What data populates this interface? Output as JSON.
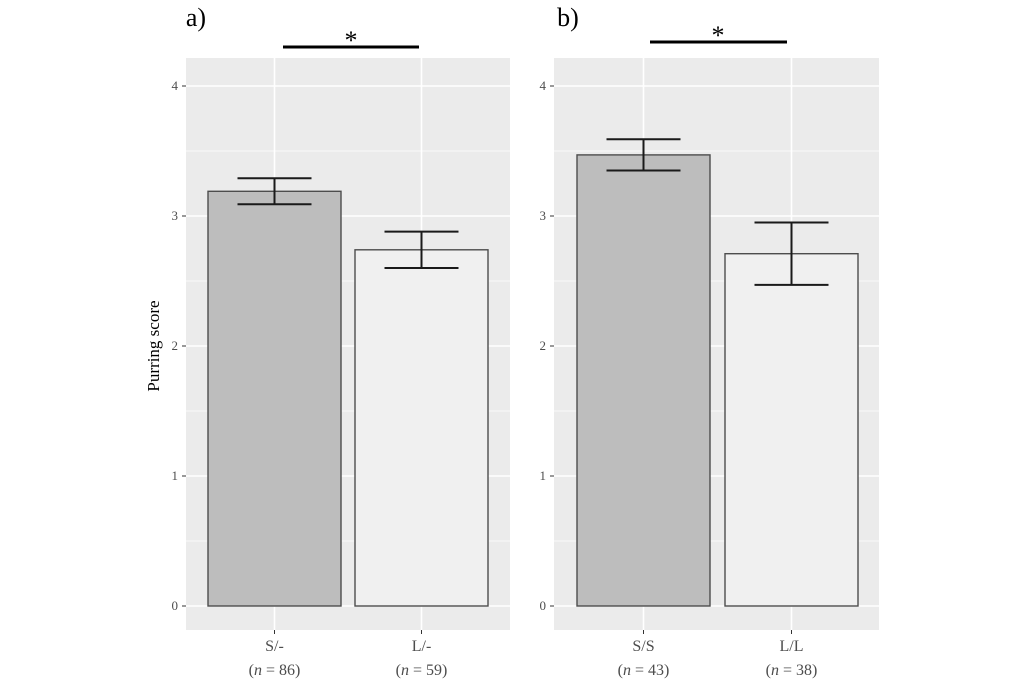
{
  "chart_data": [
    {
      "type": "bar",
      "panel_label": "a)",
      "ylabel": "Purring score",
      "ylim": [
        0,
        4
      ],
      "yticks": [
        "0",
        "1",
        "2",
        "3",
        "4"
      ],
      "categories": [
        "S/-",
        "L/-"
      ],
      "n_labels": [
        {
          "prefix": "(",
          "n": "n",
          "eq": " = ",
          "value": "86",
          "suffix": ")"
        },
        {
          "prefix": "(",
          "n": "n",
          "eq": " = ",
          "value": "59",
          "suffix": ")"
        }
      ],
      "values": [
        3.19,
        2.74
      ],
      "error_low": [
        3.09,
        2.6
      ],
      "error_high": [
        3.29,
        2.88
      ],
      "bar_colors": [
        "#bdbdbd",
        "#f0f0f0"
      ],
      "significance": "*"
    },
    {
      "type": "bar",
      "panel_label": "b)",
      "ylabel": "",
      "ylim": [
        0,
        4
      ],
      "yticks": [
        "0",
        "1",
        "2",
        "3",
        "4"
      ],
      "categories": [
        "S/S",
        "L/L"
      ],
      "n_labels": [
        {
          "prefix": "(",
          "n": "n",
          "eq": " = ",
          "value": "43",
          "suffix": ")"
        },
        {
          "prefix": "(",
          "n": "n",
          "eq": " = ",
          "value": "38",
          "suffix": ")"
        }
      ],
      "values": [
        3.47,
        2.71
      ],
      "error_low": [
        3.35,
        2.47
      ],
      "error_high": [
        3.59,
        2.95
      ],
      "bar_colors": [
        "#bdbdbd",
        "#f0f0f0"
      ],
      "significance": "*"
    }
  ],
  "colors": {
    "panel_bg": "#ebebeb",
    "grid": "#ffffff",
    "bar_edge": "#4d4d4d",
    "error_bar": "#1a1a1a"
  }
}
